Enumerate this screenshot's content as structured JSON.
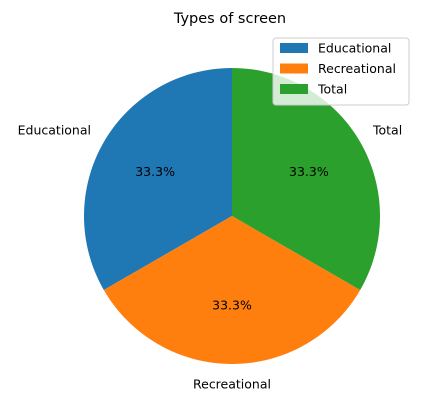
{
  "chart_data": {
    "type": "pie",
    "title": "Types of screen",
    "categories": [
      "Educational",
      "Recreational",
      "Total"
    ],
    "values": [
      1,
      1,
      1
    ],
    "percent_labels": [
      "33.3%",
      "33.3%",
      "33.3%"
    ],
    "colors": [
      "#1f77b4",
      "#ff7f0e",
      "#2ca02c"
    ],
    "start_angle_deg": 90,
    "direction": "counterclockwise",
    "legend": {
      "placement": "upper right",
      "entries": [
        "Educational",
        "Recreational",
        "Total"
      ]
    }
  }
}
